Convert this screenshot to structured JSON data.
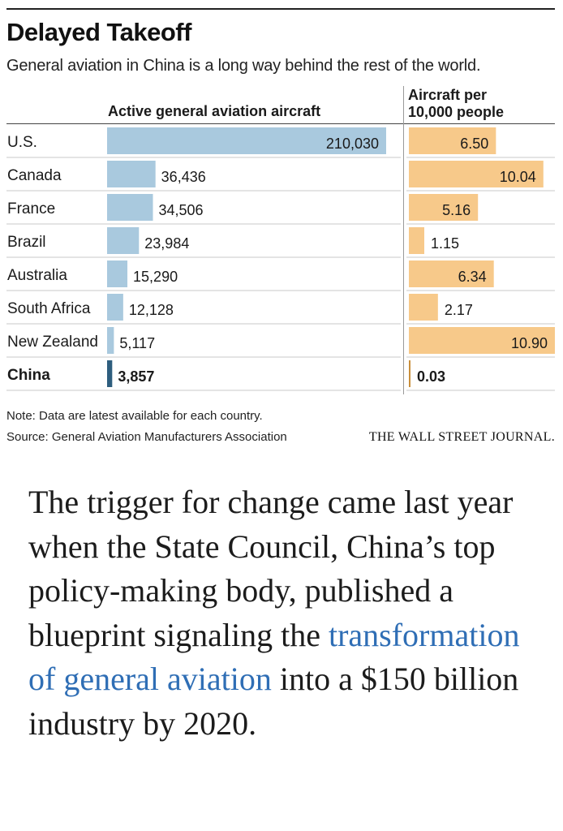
{
  "chart": {
    "title": "Delayed Takeoff",
    "subtitle": "General aviation in China is a long way behind the rest of the world.",
    "note": "Note: Data are latest available for each country.",
    "source": "Source: General Aviation Manufacturers Association",
    "publisher": "THE WALL STREET JOURNAL."
  },
  "chart_data": {
    "type": "bar",
    "title": "Delayed Takeoff",
    "subtitle": "General aviation in China is a long way behind the rest of the world.",
    "categories": [
      "U.S.",
      "Canada",
      "France",
      "Brazil",
      "Australia",
      "South Africa",
      "New Zealand",
      "China"
    ],
    "highlight": "China",
    "orientation": "horizontal",
    "series": [
      {
        "name": "Active general aviation aircraft",
        "values": [
          210030,
          36436,
          34506,
          23984,
          15290,
          12128,
          5117,
          3857
        ],
        "labels": [
          "210,030",
          "36,436",
          "34,506",
          "23,984",
          "15,290",
          "12,128",
          "5,117",
          "3,857"
        ],
        "color": "#a9c9de",
        "highlight_color": "#2e5e7e"
      },
      {
        "name_lines": [
          "Aircraft per",
          "10,000 people"
        ],
        "values": [
          6.5,
          10.04,
          5.16,
          1.15,
          6.34,
          2.17,
          10.9,
          0.03
        ],
        "labels": [
          "6.50",
          "10.04",
          "5.16",
          "1.15",
          "6.34",
          "2.17",
          "10.90",
          "0.03"
        ],
        "color": "#f7c98a",
        "highlight_color": "#c98f3c"
      }
    ]
  },
  "article": {
    "text_before": "The trigger for change came last year when the State Council, China’s top policy-making body, published a blueprint signaling the ",
    "link_text": "transformation of general aviation",
    "text_after": " into a $150 billion industry by 2020."
  }
}
